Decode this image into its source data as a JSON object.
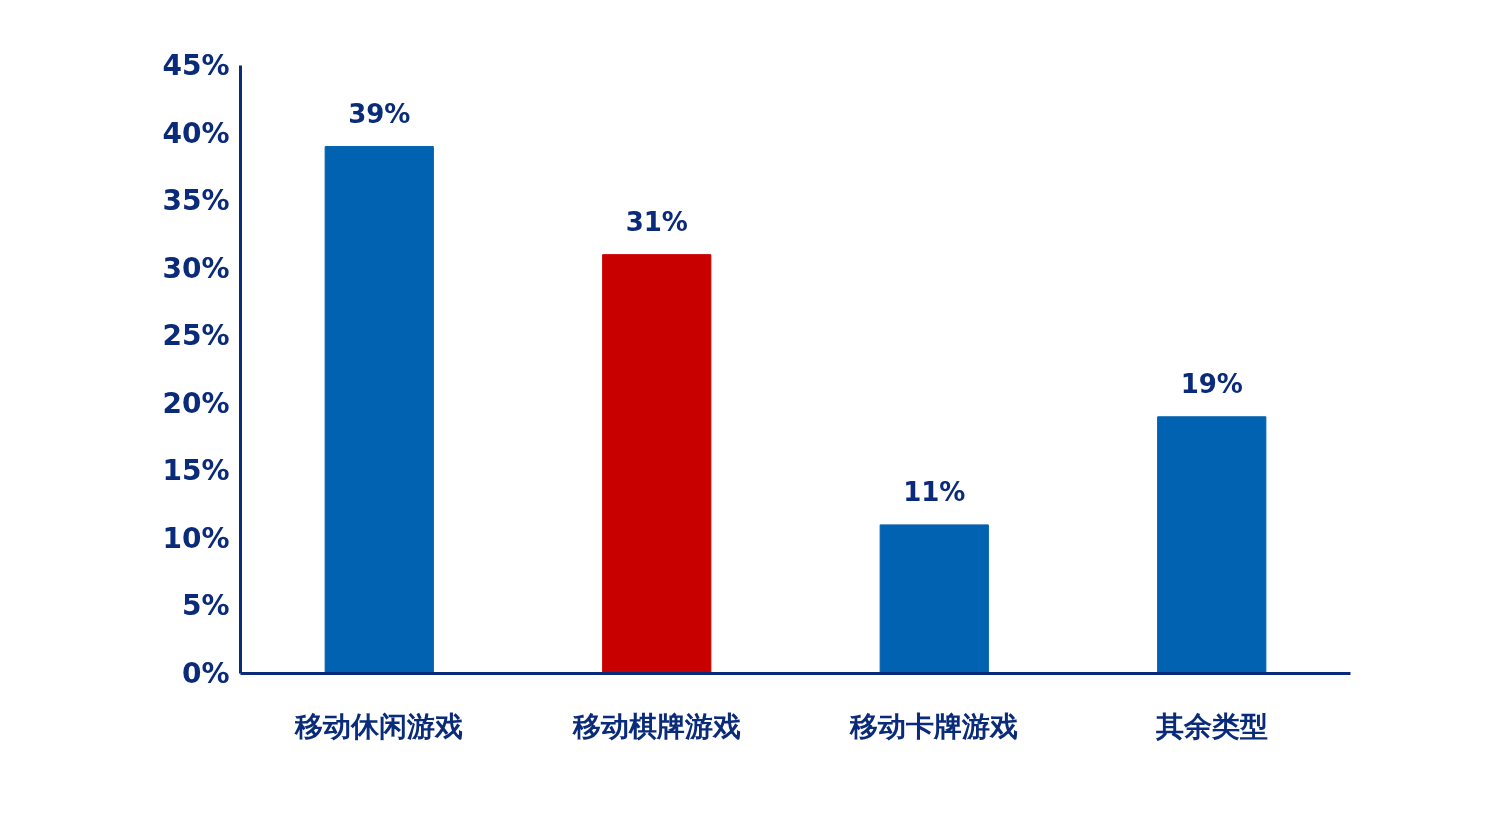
{
  "chart_data": {
    "type": "bar",
    "categories": [
      "移动休闲游戏",
      "移动棋牌游戏",
      "移动卡牌游戏",
      "其余类型"
    ],
    "values": [
      39,
      31,
      11,
      19
    ],
    "colors": [
      "#0062b0",
      "#c80000",
      "#0062b0",
      "#0062b0"
    ],
    "value_labels": [
      "39%",
      "31%",
      "11%",
      "19%"
    ],
    "ylim": [
      0,
      45
    ],
    "yticks": [
      {
        "value": 0,
        "label": "0%"
      },
      {
        "value": 5,
        "label": "5%"
      },
      {
        "value": 10,
        "label": "10%"
      },
      {
        "value": 15,
        "label": "15%"
      },
      {
        "value": 20,
        "label": "20%"
      },
      {
        "value": 25,
        "label": "25%"
      },
      {
        "value": 30,
        "label": "30%"
      },
      {
        "value": 35,
        "label": "35%"
      },
      {
        "value": 40,
        "label": "40%"
      },
      {
        "value": 45,
        "label": "45%"
      }
    ],
    "grid": false
  }
}
